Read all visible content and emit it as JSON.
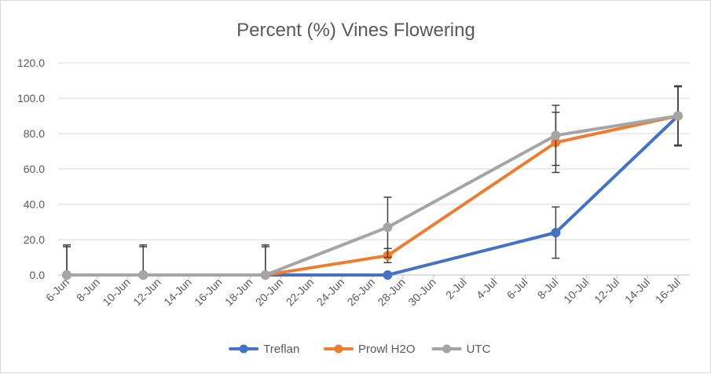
{
  "chart_data": {
    "type": "line",
    "title": "Percent (%) Vines Flowering",
    "xlabel": "",
    "ylabel": "",
    "ylim": [
      0,
      120
    ],
    "yticks": [
      0,
      20,
      40,
      60,
      80,
      100,
      120
    ],
    "ytick_labels": [
      "0.0",
      "20.0",
      "40.0",
      "60.0",
      "80.0",
      "100.0",
      "120.0"
    ],
    "xlim": [
      "2017-06-06",
      "2017-07-16"
    ],
    "xtick_labels": [
      "6-Jun",
      "8-Jun",
      "10-Jun",
      "12-Jun",
      "14-Jun",
      "16-Jun",
      "18-Jun",
      "20-Jun",
      "22-Jun",
      "24-Jun",
      "26-Jun",
      "28-Jun",
      "30-Jun",
      "2-Jul",
      "4-Jul",
      "6-Jul",
      "8-Jul",
      "10-Jul",
      "12-Jul",
      "14-Jul",
      "16-Jul"
    ],
    "xticks": [
      "2017-06-06",
      "2017-06-08",
      "2017-06-10",
      "2017-06-12",
      "2017-06-14",
      "2017-06-16",
      "2017-06-18",
      "2017-06-20",
      "2017-06-22",
      "2017-06-24",
      "2017-06-26",
      "2017-06-28",
      "2017-06-30",
      "2017-07-02",
      "2017-07-04",
      "2017-07-06",
      "2017-07-08",
      "2017-07-10",
      "2017-07-12",
      "2017-07-14",
      "2017-07-16"
    ],
    "grid": true,
    "legend": "bottom",
    "series": [
      {
        "name": "Treflan",
        "color": "#4472c4",
        "x": [
          "2017-06-06",
          "2017-06-11",
          "2017-06-19",
          "2017-06-27",
          "2017-07-08",
          "2017-07-16"
        ],
        "y": [
          0,
          0,
          0,
          0,
          24,
          90
        ],
        "error": [
          16,
          16,
          16,
          0,
          14.5,
          16.5
        ]
      },
      {
        "name": "Prowl H2O",
        "color": "#ed7d31",
        "x": [
          "2017-06-06",
          "2017-06-11",
          "2017-06-19",
          "2017-06-27",
          "2017-07-08",
          "2017-07-16"
        ],
        "y": [
          0,
          0,
          0,
          11,
          75,
          90
        ],
        "error": [
          0,
          0,
          0,
          4,
          17,
          16.5
        ]
      },
      {
        "name": "UTC",
        "color": "#a5a5a5",
        "x": [
          "2017-06-06",
          "2017-06-11",
          "2017-06-19",
          "2017-06-27",
          "2017-07-08",
          "2017-07-16"
        ],
        "y": [
          0,
          0,
          0,
          27,
          79,
          90
        ],
        "error": [
          17,
          17,
          17,
          17,
          17,
          17
        ]
      }
    ]
  }
}
